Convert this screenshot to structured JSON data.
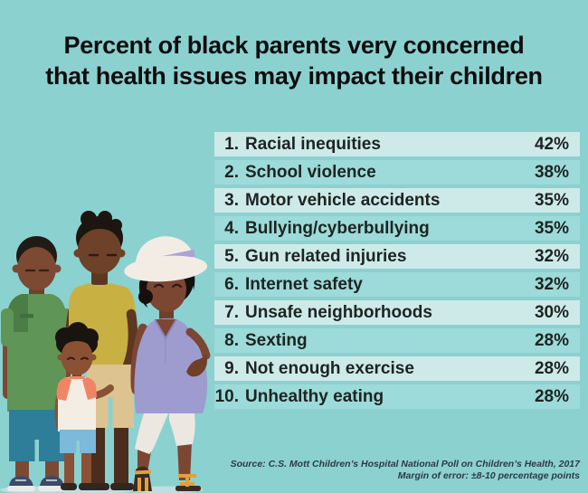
{
  "title": {
    "line1": "Percent of black parents very concerned",
    "line2": "that health issues may impact their children"
  },
  "chart_data": {
    "type": "table",
    "title": "Percent of black parents very concerned that health issues may impact their children",
    "categories": [
      "Racial inequities",
      "School violence",
      "Motor vehicle accidents",
      "Bullying/cyberbullying",
      "Gun related injuries",
      "Internet safety",
      "Unsafe neighborhoods",
      "Sexting",
      "Not enough exercise",
      "Unhealthy eating"
    ],
    "values": [
      42,
      38,
      35,
      35,
      32,
      32,
      30,
      28,
      28,
      28
    ],
    "unit": "%",
    "layout": "ranked list, rank number left, percentage right-aligned, alternating row stripes",
    "source_note": "Source: C.S. Mott Children’s Hospital National Poll on Children’s Health, 2017",
    "margin_of_error_note": "Margin of error: ±8-10 percentage points"
  },
  "list": {
    "items": [
      {
        "rank": "1.",
        "label": "Racial inequities",
        "value": "42%"
      },
      {
        "rank": "2.",
        "label": "School violence",
        "value": "38%"
      },
      {
        "rank": "3.",
        "label": "Motor vehicle accidents",
        "value": "35%"
      },
      {
        "rank": "4.",
        "label": "Bullying/cyberbullying",
        "value": "35%"
      },
      {
        "rank": "5.",
        "label": "Gun related injuries",
        "value": "32%"
      },
      {
        "rank": "6.",
        "label": "Internet safety",
        "value": "32%"
      },
      {
        "rank": "7.",
        "label": "Unsafe neighborhoods",
        "value": "30%"
      },
      {
        "rank": "8.",
        "label": "Sexting",
        "value": "28%"
      },
      {
        "rank": "9.",
        "label": "Not enough exercise",
        "value": "28%"
      },
      {
        "rank": "10.",
        "label": "Unhealthy eating",
        "value": "28%"
      }
    ]
  },
  "source": {
    "line1": "Source: C.S. Mott Children’s Hospital National Poll on Children’s Health, 2017",
    "line2": "Margin of error: ±8-10 percentage points"
  },
  "illustration": {
    "name": "black-family-illustration",
    "description": "Flat illustration of a Black family: man in green shirt, man in mustard shirt, boy in coral-and-white shirt, pregnant woman in white sun hat and lavender top"
  },
  "colors": {
    "background": "#8bd1d0",
    "row_light": "#cdeae9",
    "row_dark": "#9cdbd9",
    "title_text": "#0d0d0d",
    "list_text": "#1d2422",
    "source_text": "#2c3b43",
    "skin_1": "#7c4a33",
    "skin_2": "#6e4129",
    "skin_boy": "#8a5134",
    "skin_woman": "#7b4733",
    "hair": "#1c1510",
    "shirt_green": "#5f9556",
    "shirt_green_dark": "#4c7d46",
    "shirt_mustard": "#c8b142",
    "shorts_teal": "#2e7e9a",
    "shorts_khaki": "#dcc390",
    "shirt_cream": "#f4ede3",
    "sleeve_coral": "#f08565",
    "shorts_lightblue": "#7cb9da",
    "hat_white": "#f2ece5",
    "band_lavender": "#a9a3d6",
    "top_lavender": "#9e9bce",
    "pants_white": "#ece7e1",
    "sandal_gold": "#e2a03c",
    "sneaker_navy": "#3a4a68"
  }
}
